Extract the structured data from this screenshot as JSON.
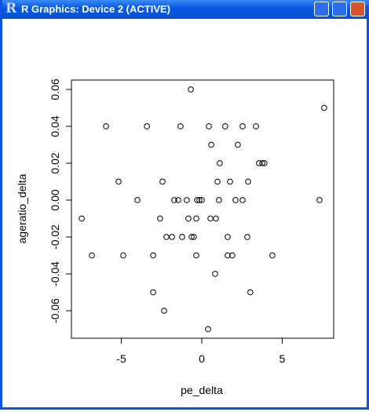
{
  "window": {
    "title": "R Graphics: Device 2 (ACTIVE)"
  },
  "chart_data": {
    "type": "scatter",
    "x_label": "pe_delta",
    "y_label": "ageratio_delta",
    "x": [
      -7.46,
      -6.83,
      -5.95,
      -5.17,
      -4.88,
      -4.0,
      -3.41,
      -3.02,
      -3.02,
      -2.59,
      -2.44,
      -2.34,
      -2.2,
      -1.85,
      -1.71,
      -1.46,
      -1.32,
      -1.22,
      -0.93,
      -0.83,
      -0.68,
      -0.63,
      -0.49,
      -0.34,
      -0.29,
      -0.34,
      -0.15,
      0,
      0.39,
      0.44,
      0.54,
      0.59,
      0.83,
      0.88,
      0.98,
      1.07,
      1.12,
      1.46,
      1.61,
      1.61,
      1.76,
      1.9,
      2.1,
      2.24,
      2.54,
      2.54,
      2.83,
      2.88,
      3.02,
      3.37,
      3.56,
      3.76,
      3.9,
      4.39,
      7.32,
      7.61
    ],
    "values": [
      -0.01,
      -0.03,
      0.04,
      0.01,
      -0.03,
      0,
      0.04,
      -0.03,
      -0.05,
      -0.01,
      0.01,
      -0.06,
      -0.02,
      -0.02,
      0,
      0,
      0.04,
      -0.02,
      0,
      -0.01,
      0.06,
      -0.02,
      -0.02,
      -0.01,
      0,
      -0.03,
      0,
      0,
      -0.07,
      0.04,
      -0.01,
      0.03,
      -0.04,
      -0.01,
      0.01,
      0,
      0.02,
      0.04,
      -0.02,
      -0.03,
      0.01,
      -0.03,
      0,
      0.03,
      0.04,
      0,
      -0.02,
      0.01,
      -0.05,
      0.04,
      0.02,
      0.02,
      0.02,
      -0.03,
      0,
      0.05
    ],
    "color": "#000000",
    "xlim": [
      -8.1,
      8.2
    ],
    "ylim": [
      -0.0749,
      0.0651
    ],
    "xticks": [
      -5,
      0,
      5
    ],
    "yticks": [
      -0.06,
      -0.04,
      -0.02,
      {
        "value": 0,
        "label": "0.00"
      },
      0.02,
      0.04,
      0.06
    ]
  }
}
